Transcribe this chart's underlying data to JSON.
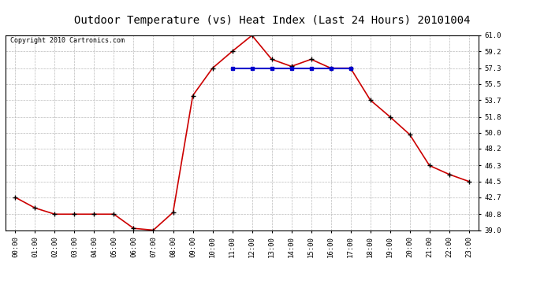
{
  "title": "Outdoor Temperature (vs) Heat Index (Last 24 Hours) 20101004",
  "copyright": "Copyright 2010 Cartronics.com",
  "x_labels": [
    "00:00",
    "01:00",
    "02:00",
    "03:00",
    "04:00",
    "05:00",
    "06:00",
    "07:00",
    "08:00",
    "09:00",
    "10:00",
    "11:00",
    "12:00",
    "13:00",
    "14:00",
    "15:00",
    "16:00",
    "17:00",
    "18:00",
    "19:00",
    "20:00",
    "21:00",
    "22:00",
    "23:00"
  ],
  "temp_values": [
    42.7,
    41.5,
    40.8,
    40.8,
    40.8,
    40.8,
    39.2,
    39.0,
    41.0,
    54.2,
    57.3,
    59.2,
    61.0,
    58.3,
    57.5,
    58.3,
    57.3,
    57.3,
    53.7,
    51.8,
    49.8,
    46.3,
    45.3,
    44.5
  ],
  "heat_values": [
    null,
    null,
    null,
    null,
    null,
    null,
    null,
    null,
    null,
    null,
    null,
    57.3,
    57.3,
    57.3,
    57.3,
    57.3,
    57.3,
    57.3,
    null,
    null,
    null,
    null,
    null,
    null
  ],
  "ylim": [
    39.0,
    61.0
  ],
  "yticks": [
    39.0,
    40.8,
    42.7,
    44.5,
    46.3,
    48.2,
    50.0,
    51.8,
    53.7,
    55.5,
    57.3,
    59.2,
    61.0
  ],
  "bg_color": "#ffffff",
  "grid_color": "#bbbbbb",
  "temp_color": "#cc0000",
  "heat_color": "#0000cc",
  "marker_color": "#000000",
  "title_fontsize": 10,
  "copyright_fontsize": 6,
  "tick_fontsize": 6.5
}
